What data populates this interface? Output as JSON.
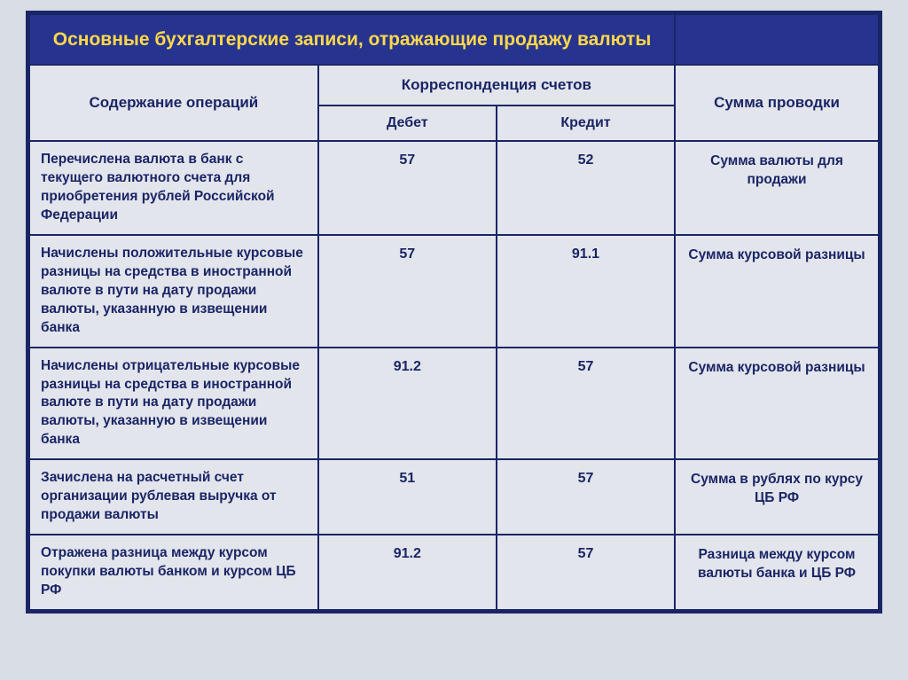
{
  "title": "Основные бухгалтерские записи, отражающие продажу валюты",
  "headers": {
    "operations": "Содержание операций",
    "correspondence": "Корреспонденция счетов",
    "amount": "Сумма проводки",
    "debit": "Дебет",
    "credit": "Кредит"
  },
  "rows": [
    {
      "op": "Перечислена валюта в банк с текущего валютного счета для приобретения рублей Российской Федерации",
      "debit": "57",
      "credit": "52",
      "sum": "Сумма валюты для продажи"
    },
    {
      "op": "Начислены положительные курсовые разницы на средства в иностранной валюте в пути на дату продажи валюты, указанную в извещении банка",
      "debit": "57",
      "credit": "91.1",
      "sum": "Сумма курсовой разницы"
    },
    {
      "op": "Начислены отрицательные курсовые разницы на средства в иностранной валюте в пути на дату продажи валюты, указанную в извещении банка",
      "debit": "91.2",
      "credit": "57",
      "sum": "Сумма курсовой разницы"
    },
    {
      "op": "Зачислена на расчетный счет организации рублевая выручка от продажи валюты",
      "debit": "51",
      "credit": "57",
      "sum": "Сумма в рублях по курсу ЦБ РФ"
    },
    {
      "op": "Отражена разница между курсом покупки валюты банком и курсом ЦБ РФ",
      "debit": "91.2",
      "credit": "57",
      "sum": "Разница между курсом валюты банка и ЦБ РФ"
    }
  ],
  "style": {
    "title_bg": "#26348f",
    "title_color": "#ffd84a",
    "cell_bg": "#e3e5ec",
    "text_color": "#1a2566",
    "border_color": "#1a2566",
    "page_bg": "#d9dde4",
    "title_fontsize": 21,
    "header_fontsize": 17,
    "body_fontsize": 15.5
  }
}
